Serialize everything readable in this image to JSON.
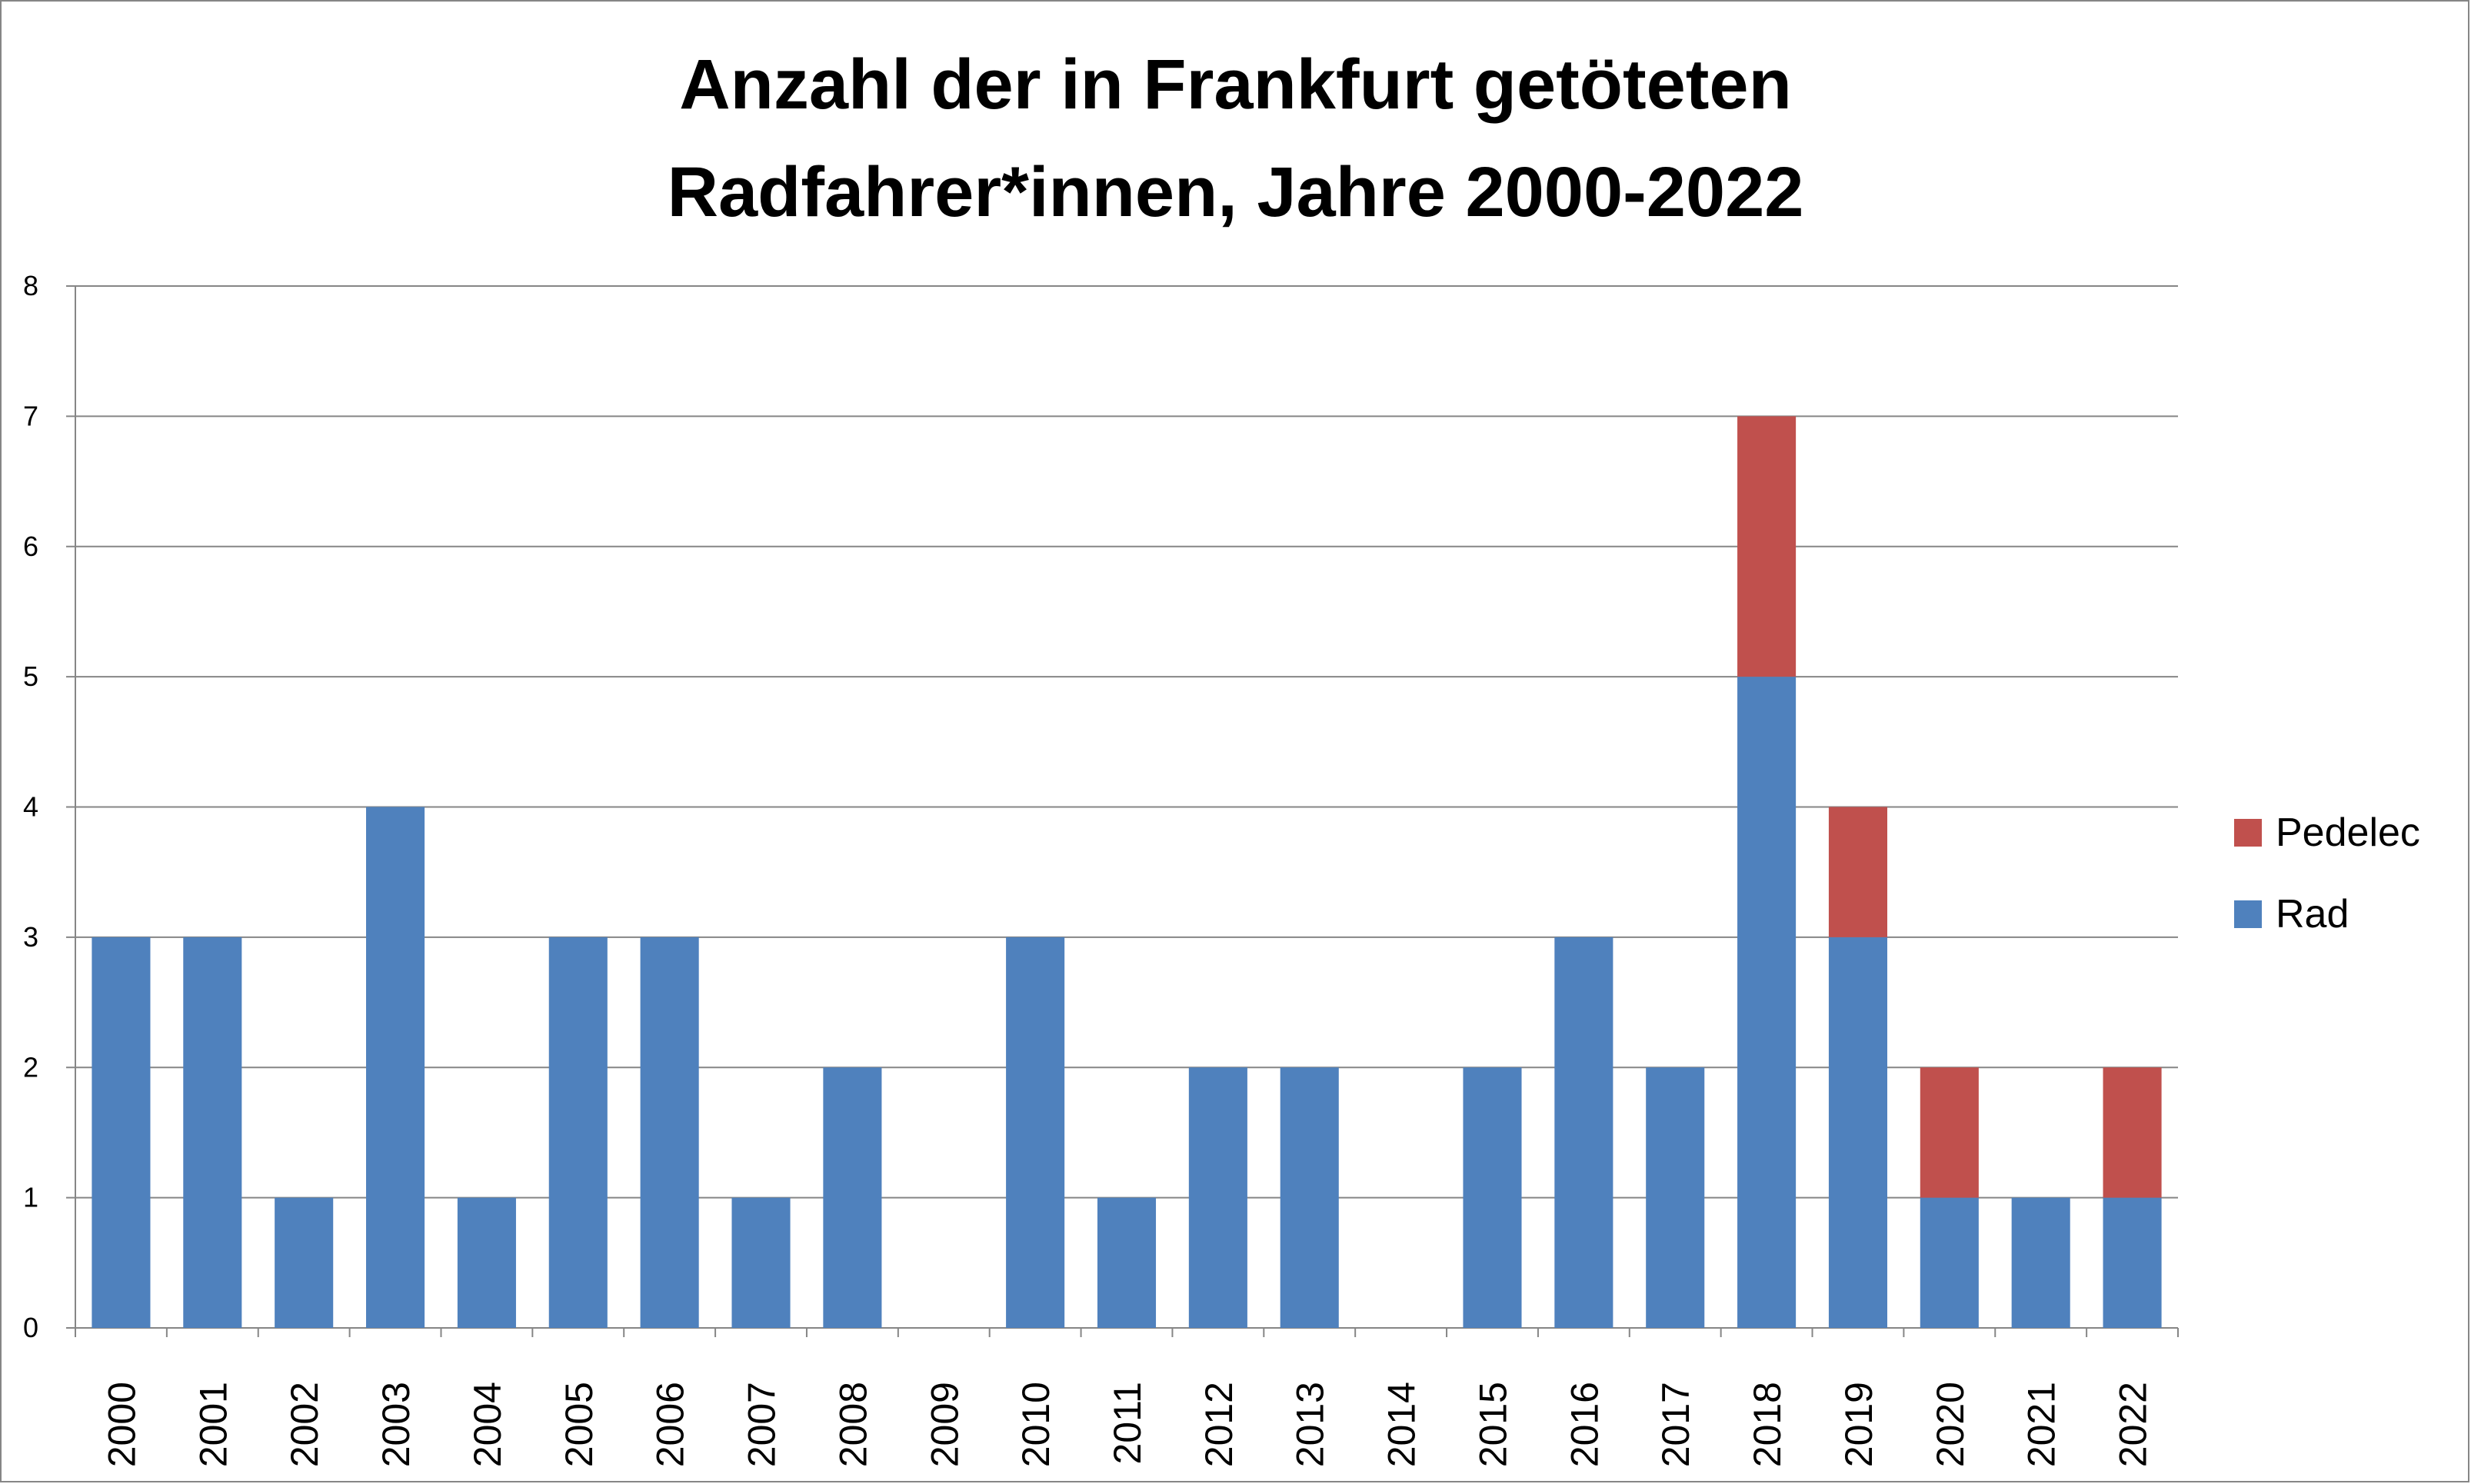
{
  "chart_data": {
    "type": "bar",
    "stacked": true,
    "title": [
      "Anzahl der in Frankfurt getöteten",
      "Radfahrer*innen, Jahre 2000-2022"
    ],
    "categories": [
      "2000",
      "2001",
      "2002",
      "2003",
      "2004",
      "2005",
      "2006",
      "2007",
      "2008",
      "2009",
      "2010",
      "2011",
      "2012",
      "2013",
      "2014",
      "2015",
      "2016",
      "2017",
      "2018",
      "2019",
      "2020",
      "2021",
      "2022"
    ],
    "series": [
      {
        "name": "Rad",
        "color": "#4F81BD",
        "values": [
          3,
          3,
          1,
          4,
          1,
          3,
          3,
          1,
          2,
          0,
          3,
          1,
          2,
          2,
          0,
          2,
          3,
          2,
          5,
          3,
          1,
          1,
          1
        ]
      },
      {
        "name": "Pedelec",
        "color": "#C0504D",
        "values": [
          0,
          0,
          0,
          0,
          0,
          0,
          0,
          0,
          0,
          0,
          0,
          0,
          0,
          0,
          0,
          0,
          0,
          0,
          2,
          1,
          1,
          0,
          1
        ]
      }
    ],
    "legend_order": [
      "Pedelec",
      "Rad"
    ],
    "legend_position": "right",
    "ylim": [
      0,
      8
    ],
    "yticks": [
      0,
      1,
      2,
      3,
      4,
      5,
      6,
      7,
      8
    ],
    "grid": true,
    "xlabel": "",
    "ylabel": ""
  }
}
